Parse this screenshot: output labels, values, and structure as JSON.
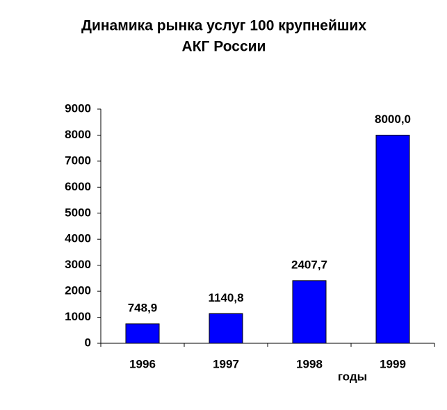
{
  "chart_data": {
    "type": "bar",
    "title": [
      "Динамика рынка услуг 100 крупнейших",
      "АКГ России"
    ],
    "x_label": "годы",
    "categories": [
      "1996",
      "1997",
      "1998",
      "1999"
    ],
    "values": [
      748.9,
      1140.8,
      2407.7,
      8000.0
    ],
    "value_labels": [
      "748,9",
      "1140,8",
      "2407,7",
      "8000,0"
    ],
    "color": "#0000ff",
    "ylim": [
      0,
      9000
    ],
    "yticks": [
      0,
      1000,
      2000,
      3000,
      4000,
      5000,
      6000,
      7000,
      8000,
      9000
    ],
    "grid": false
  }
}
